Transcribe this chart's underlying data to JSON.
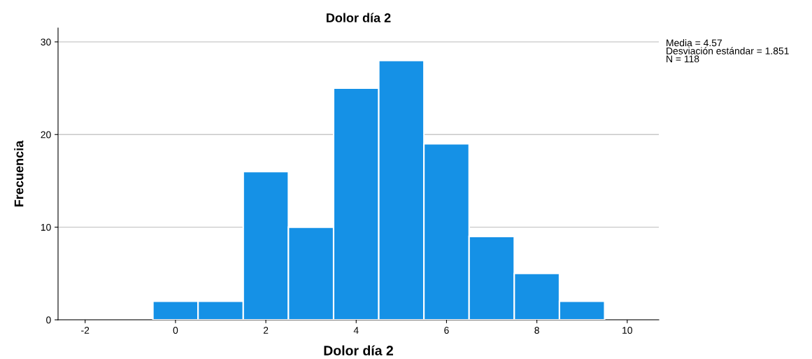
{
  "chart_data": {
    "type": "histogram",
    "title": "Dolor día 2",
    "xlabel": "Dolor día 2",
    "ylabel": "Frecuencia",
    "bins": [
      -0.5,
      0.5,
      1.5,
      2.5,
      3.5,
      4.5,
      5.5,
      6.5,
      7.5,
      8.5,
      9.5
    ],
    "values": [
      2,
      2,
      16,
      10,
      25,
      28,
      19,
      9,
      5,
      2
    ],
    "color": "#1591e6",
    "xlim": [
      -2.6,
      10.7
    ],
    "xticks": [
      -2,
      0,
      2,
      4,
      6,
      8,
      10
    ],
    "ylim": [
      0,
      31.5
    ],
    "yticks": [
      0,
      10,
      20,
      30
    ],
    "grid": "y",
    "legend": false,
    "annotations": [
      "Media = 4.57\nDesviación estándar = 1.851\nN = 118"
    ]
  }
}
